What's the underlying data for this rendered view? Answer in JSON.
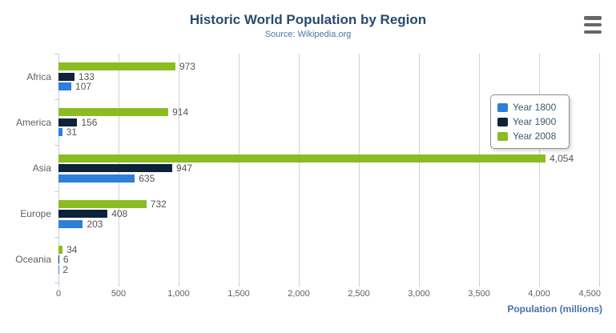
{
  "header": {
    "title": "Historic World Population by Region",
    "subtitle": "Source: Wikipedia.org"
  },
  "toolbar": {
    "export_menu_icon": "hamburger-menu-icon"
  },
  "colors": {
    "title_text": "#274b6d",
    "subtitle_text": "#4d759e",
    "axis_title_text": "#4572a7",
    "axis_line": "#c0d0e0",
    "gridline": "#d3d3d3",
    "axis_label_text": "#606060",
    "data_label_text": "#555555",
    "legend_text": "#3e576f",
    "series_year_1800": "#2f7ed8",
    "series_year_1900": "#0d233a",
    "series_year_2008": "#8bbc21"
  },
  "legend": {
    "position": "right",
    "items": [
      {
        "label": "Year 1800",
        "color": "#2f7ed8"
      },
      {
        "label": "Year 1900",
        "color": "#0d233a"
      },
      {
        "label": "Year 2008",
        "color": "#8bbc21"
      }
    ]
  },
  "chart_data": {
    "type": "bar",
    "orientation": "horizontal",
    "title": "Historic World Population by Region",
    "subtitle": "Source: Wikipedia.org",
    "categories": [
      "Africa",
      "America",
      "Asia",
      "Europe",
      "Oceania"
    ],
    "series": [
      {
        "name": "Year 1800",
        "color": "#2f7ed8",
        "values": [
          107,
          31,
          635,
          203,
          2
        ]
      },
      {
        "name": "Year 1900",
        "color": "#0d233a",
        "values": [
          133,
          156,
          947,
          408,
          6
        ]
      },
      {
        "name": "Year 2008",
        "color": "#8bbc21",
        "values": [
          973,
          914,
          4054,
          732,
          34
        ]
      }
    ],
    "bar_order_top_to_bottom": [
      "Year 2008",
      "Year 1900",
      "Year 1800"
    ],
    "xlabel": "Population (millions)",
    "ylabel": "",
    "xlim": [
      0,
      4500
    ],
    "x_ticks": [
      0,
      500,
      1000,
      1500,
      2000,
      2500,
      3000,
      3500,
      4000,
      4500
    ],
    "x_tick_labels": [
      "0",
      "500",
      "1,000",
      "1,500",
      "2,000",
      "2,500",
      "3,000",
      "3,500",
      "4,000",
      "4,500"
    ],
    "grid": true,
    "data_labels": true,
    "legend_position": "right"
  }
}
